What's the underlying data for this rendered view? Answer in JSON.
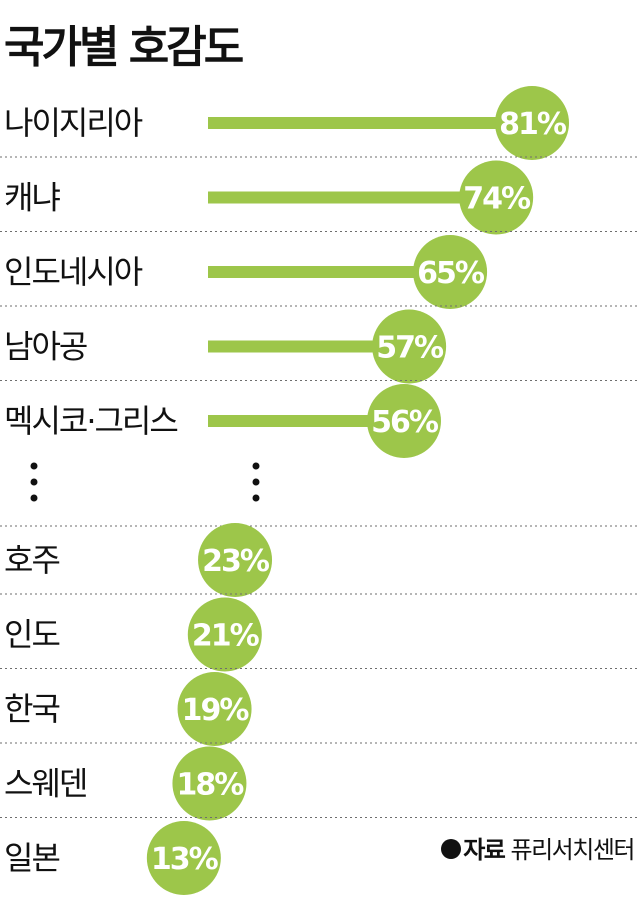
{
  "chart_data": {
    "type": "bar",
    "title": "국가별 호감도",
    "top_group": [
      {
        "category": "나이지리아",
        "value": 81,
        "label": "81%"
      },
      {
        "category": "캐냐",
        "value": 74,
        "label": "74%"
      },
      {
        "category": "인도네시아",
        "value": 65,
        "label": "65%"
      },
      {
        "category": "남아공",
        "value": 57,
        "label": "57%"
      },
      {
        "category": "멕시코·그리스",
        "value": 56,
        "label": "56%"
      }
    ],
    "bottom_group": [
      {
        "category": "호주",
        "value": 23,
        "label": "23%"
      },
      {
        "category": "인도",
        "value": 21,
        "label": "21%"
      },
      {
        "category": "한국",
        "value": 19,
        "label": "19%"
      },
      {
        "category": "스웨덴",
        "value": 18,
        "label": "18%"
      },
      {
        "category": "일본",
        "value": 13,
        "label": "13%"
      }
    ],
    "colors": {
      "bar": "#9dc64a",
      "circle": "#9dc64a",
      "value_text": "#ffffff",
      "divider": "#6e6e6e"
    }
  },
  "source": {
    "label": "자료",
    "name": "퓨리서치센터"
  }
}
